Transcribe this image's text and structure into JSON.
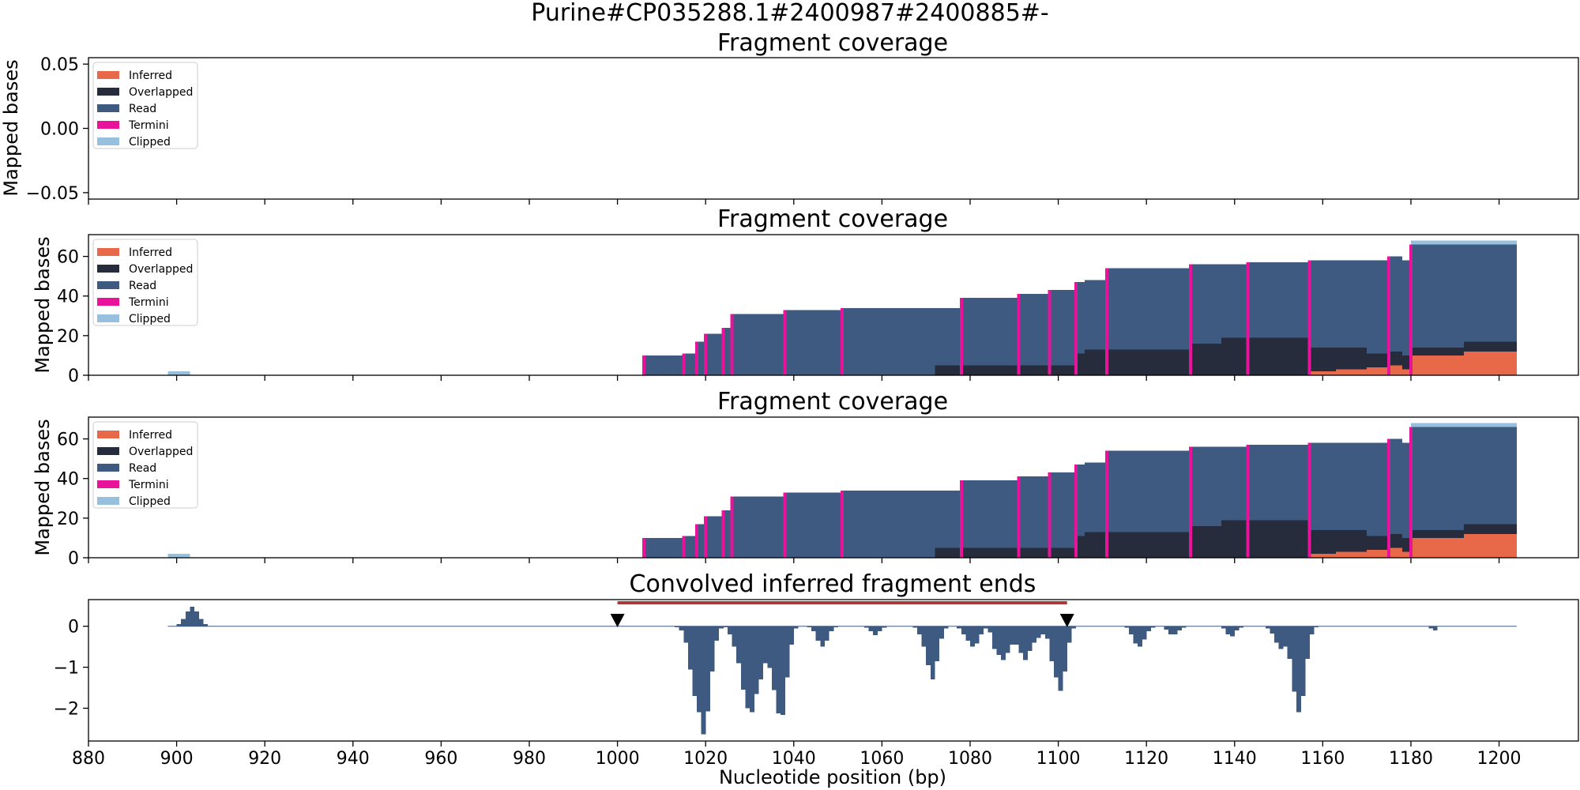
{
  "figure": {
    "suptitle": "Purine#CP035288.1#2400987#2400885#-",
    "xlabel": "Nucleotide position (bp)"
  },
  "legend": {
    "entries": [
      {
        "label": "Inferred",
        "color": "#e8694a"
      },
      {
        "label": "Overlapped",
        "color": "#262c3c"
      },
      {
        "label": "Read",
        "color": "#3e5a80"
      },
      {
        "label": "Termini",
        "color": "#e8139a"
      },
      {
        "label": "Clipped",
        "color": "#96c0dd"
      }
    ]
  },
  "chart_data": [
    {
      "type": "area",
      "title": "Fragment coverage",
      "ylabel": "Mapped bases",
      "xlim": [
        880,
        1218
      ],
      "ylim": [
        -0.055,
        0.055
      ],
      "yticks": [
        "0.05",
        "0.00",
        "−0.05"
      ],
      "ytick_values": [
        0.05,
        0.0,
        -0.05
      ],
      "show_legend": true,
      "stacked_profile": null
    },
    {
      "type": "area",
      "title": "Fragment coverage",
      "ylabel": "Mapped bases",
      "xlim": [
        880,
        1218
      ],
      "ylim": [
        0,
        71
      ],
      "yticks": [
        "0",
        "20",
        "40",
        "60"
      ],
      "ytick_values": [
        0,
        20,
        40,
        60
      ],
      "show_legend": true,
      "stacked_profile": "coverage"
    },
    {
      "type": "area",
      "title": "Fragment coverage",
      "ylabel": "Mapped bases",
      "xlim": [
        880,
        1218
      ],
      "ylim": [
        0,
        71
      ],
      "yticks": [
        "0",
        "20",
        "40",
        "60"
      ],
      "ytick_values": [
        0,
        20,
        40,
        60
      ],
      "show_legend": true,
      "stacked_profile": "coverage"
    },
    {
      "type": "bar",
      "title": "Convolved inferred fragment ends",
      "ylim": [
        -2.8,
        0.65
      ],
      "yticks": [
        "0",
        "−1",
        "−2"
      ],
      "ytick_values": [
        0,
        -1,
        -2
      ],
      "xticks": [
        "880",
        "900",
        "920",
        "940",
        "960",
        "980",
        "1000",
        "1020",
        "1040",
        "1060",
        "1080",
        "1100",
        "1120",
        "1140",
        "1160",
        "1180",
        "1200"
      ],
      "xtick_values": [
        880,
        900,
        920,
        940,
        960,
        980,
        1000,
        1020,
        1040,
        1060,
        1080,
        1100,
        1120,
        1140,
        1160,
        1180,
        1200
      ],
      "marker_positions": [
        1000,
        1102
      ],
      "span": {
        "start": 1000,
        "end": 1102,
        "color": "#a93a3a"
      },
      "bars_x_start": 898,
      "bar_width": 1,
      "bar_color": "#3e5a80"
    }
  ],
  "coverage_profile": {
    "clipped_low": {
      "x_start": 898,
      "x_end": 903,
      "value": 2
    },
    "segments": [
      {
        "x_start": 1006,
        "x_end": 1015,
        "read_top": 10,
        "termini_x": 1006,
        "overlapped": 0,
        "inferred": 0
      },
      {
        "x_start": 1015,
        "x_end": 1018,
        "read_top": 11,
        "termini_x": 1015,
        "overlapped": 0,
        "inferred": 0
      },
      {
        "x_start": 1018,
        "x_end": 1020,
        "read_top": 17,
        "termini_x": 1018,
        "overlapped": 0,
        "inferred": 0
      },
      {
        "x_start": 1020,
        "x_end": 1024,
        "read_top": 21,
        "termini_x": 1020,
        "overlapped": 0,
        "inferred": 0
      },
      {
        "x_start": 1024,
        "x_end": 1026,
        "read_top": 24,
        "termini_x": 1024,
        "overlapped": 0,
        "inferred": 0
      },
      {
        "x_start": 1026,
        "x_end": 1038,
        "read_top": 31,
        "termini_x": 1026,
        "overlapped": 0,
        "inferred": 0
      },
      {
        "x_start": 1038,
        "x_end": 1051,
        "read_top": 33,
        "termini_x": 1038,
        "overlapped": 0,
        "inferred": 0
      },
      {
        "x_start": 1051,
        "x_end": 1072,
        "read_top": 34,
        "termini_x": 1051,
        "overlapped": 0,
        "inferred": 0
      },
      {
        "x_start": 1072,
        "x_end": 1078,
        "read_top": 34,
        "termini_x": null,
        "overlapped": 5,
        "inferred": 0
      },
      {
        "x_start": 1078,
        "x_end": 1082,
        "read_top": 39,
        "termini_x": 1078,
        "overlapped": 5,
        "inferred": 0
      },
      {
        "x_start": 1082,
        "x_end": 1091,
        "read_top": 39,
        "termini_x": null,
        "overlapped": 5,
        "inferred": 0
      },
      {
        "x_start": 1091,
        "x_end": 1098,
        "read_top": 41,
        "termini_x": 1091,
        "overlapped": 5,
        "inferred": 0
      },
      {
        "x_start": 1098,
        "x_end": 1104,
        "read_top": 43,
        "termini_x": 1098,
        "overlapped": 5,
        "inferred": 0
      },
      {
        "x_start": 1104,
        "x_end": 1106,
        "read_top": 47,
        "termini_x": 1104,
        "overlapped": 11,
        "inferred": 0
      },
      {
        "x_start": 1106,
        "x_end": 1111,
        "read_top": 48,
        "termini_x": null,
        "overlapped": 13,
        "inferred": 0
      },
      {
        "x_start": 1111,
        "x_end": 1130,
        "read_top": 54,
        "termini_x": 1111,
        "overlapped": 13,
        "inferred": 0
      },
      {
        "x_start": 1130,
        "x_end": 1137,
        "read_top": 56,
        "termini_x": 1130,
        "overlapped": 16,
        "inferred": 0
      },
      {
        "x_start": 1137,
        "x_end": 1143,
        "read_top": 56,
        "termini_x": null,
        "overlapped": 19,
        "inferred": 0
      },
      {
        "x_start": 1143,
        "x_end": 1157,
        "read_top": 57,
        "termini_x": 1143,
        "overlapped": 19,
        "inferred": 0
      },
      {
        "x_start": 1157,
        "x_end": 1163,
        "read_top": 58,
        "termini_x": 1157,
        "overlapped": 14,
        "inferred": 2
      },
      {
        "x_start": 1163,
        "x_end": 1170,
        "read_top": 58,
        "termini_x": null,
        "overlapped": 14,
        "inferred": 3
      },
      {
        "x_start": 1170,
        "x_end": 1175,
        "read_top": 58,
        "termini_x": null,
        "overlapped": 11,
        "inferred": 4
      },
      {
        "x_start": 1175,
        "x_end": 1178,
        "read_top": 60,
        "termini_x": 1175,
        "overlapped": 12,
        "inferred": 5
      },
      {
        "x_start": 1178,
        "x_end": 1180,
        "read_top": 58,
        "termini_x": null,
        "overlapped": 10,
        "inferred": 3
      },
      {
        "x_start": 1180,
        "x_end": 1192,
        "read_top": 66,
        "termini_x": 1180,
        "overlapped": 14,
        "inferred": 10
      },
      {
        "x_start": 1192,
        "x_end": 1204,
        "read_top": 66,
        "termini_x": null,
        "overlapped": 17,
        "inferred": 12
      }
    ],
    "clipped_top": {
      "x_start": 1180,
      "x_end": 1204,
      "bottom": 66,
      "top": 68
    }
  },
  "convolved_values": [
    0.0,
    0.0,
    0.05,
    0.18,
    0.36,
    0.48,
    0.36,
    0.18,
    0.05,
    0.0,
    0,
    0,
    0,
    0,
    0,
    0,
    0,
    0,
    0,
    0,
    0,
    0,
    0,
    0,
    0,
    0,
    0,
    0,
    0,
    0,
    0,
    0,
    0,
    0,
    0,
    0,
    0,
    0,
    0,
    0,
    0,
    0,
    0,
    0,
    0,
    0,
    0,
    0,
    0,
    0,
    0,
    0,
    0,
    0,
    0,
    0,
    0,
    0,
    0,
    0,
    0,
    0,
    0,
    0,
    0,
    0,
    0,
    0,
    0,
    0,
    0,
    0,
    0,
    0,
    0,
    0,
    0,
    0,
    0,
    0,
    0,
    0,
    0,
    0,
    0,
    0,
    0,
    0,
    0,
    0,
    0,
    0,
    0,
    0,
    0,
    0,
    0,
    0,
    0,
    0,
    0,
    0,
    0,
    0,
    0,
    0,
    0,
    0,
    0,
    0,
    0,
    0,
    0,
    0,
    0,
    -0.02,
    -0.1,
    -0.4,
    -1.06,
    -1.7,
    -2.1,
    -2.64,
    -2.08,
    -1.1,
    -0.35,
    -0.05,
    -0.02,
    -0.2,
    -0.5,
    -0.9,
    -1.55,
    -2.0,
    -2.1,
    -1.65,
    -1.3,
    -0.9,
    -1.02,
    -1.56,
    -2.13,
    -2.16,
    -1.25,
    -0.45,
    -0.05,
    0,
    0,
    -0.02,
    -0.12,
    -0.35,
    -0.5,
    -0.35,
    -0.12,
    -0.02,
    0,
    0,
    0,
    0,
    0,
    0,
    -0.03,
    -0.12,
    -0.22,
    -0.12,
    -0.03,
    0,
    0,
    0,
    0,
    0,
    0,
    -0.03,
    -0.2,
    -0.5,
    -0.95,
    -1.3,
    -0.85,
    -0.3,
    -0.05,
    0,
    0,
    -0.05,
    -0.2,
    -0.35,
    -0.5,
    -0.42,
    -0.2,
    -0.05,
    -0.15,
    -0.55,
    -0.7,
    -0.82,
    -0.65,
    -0.45,
    -0.45,
    -0.65,
    -0.82,
    -0.6,
    -0.4,
    -0.28,
    -0.2,
    -0.3,
    -0.85,
    -1.25,
    -1.58,
    -1.1,
    -0.4,
    -0.05,
    0,
    0,
    0,
    0,
    0,
    0,
    0,
    0,
    0,
    0,
    0,
    -0.03,
    -0.2,
    -0.42,
    -0.5,
    -0.32,
    -0.12,
    -0.03,
    0,
    0,
    -0.08,
    -0.2,
    -0.2,
    -0.1,
    -0.03,
    0,
    0,
    0,
    0,
    0,
    0,
    0,
    0,
    -0.05,
    -0.2,
    -0.25,
    -0.1,
    -0.03,
    0,
    0,
    0,
    0,
    0,
    -0.05,
    -0.18,
    -0.4,
    -0.55,
    -0.5,
    -0.8,
    -1.6,
    -2.1,
    -1.7,
    -0.8,
    -0.2,
    -0.02,
    0,
    0,
    0,
    0,
    0,
    0,
    0,
    0,
    0,
    0,
    0,
    0,
    0,
    0,
    0,
    0,
    0,
    0,
    0,
    0,
    0,
    0,
    0,
    0,
    0,
    -0.05,
    -0.1,
    0
  ]
}
